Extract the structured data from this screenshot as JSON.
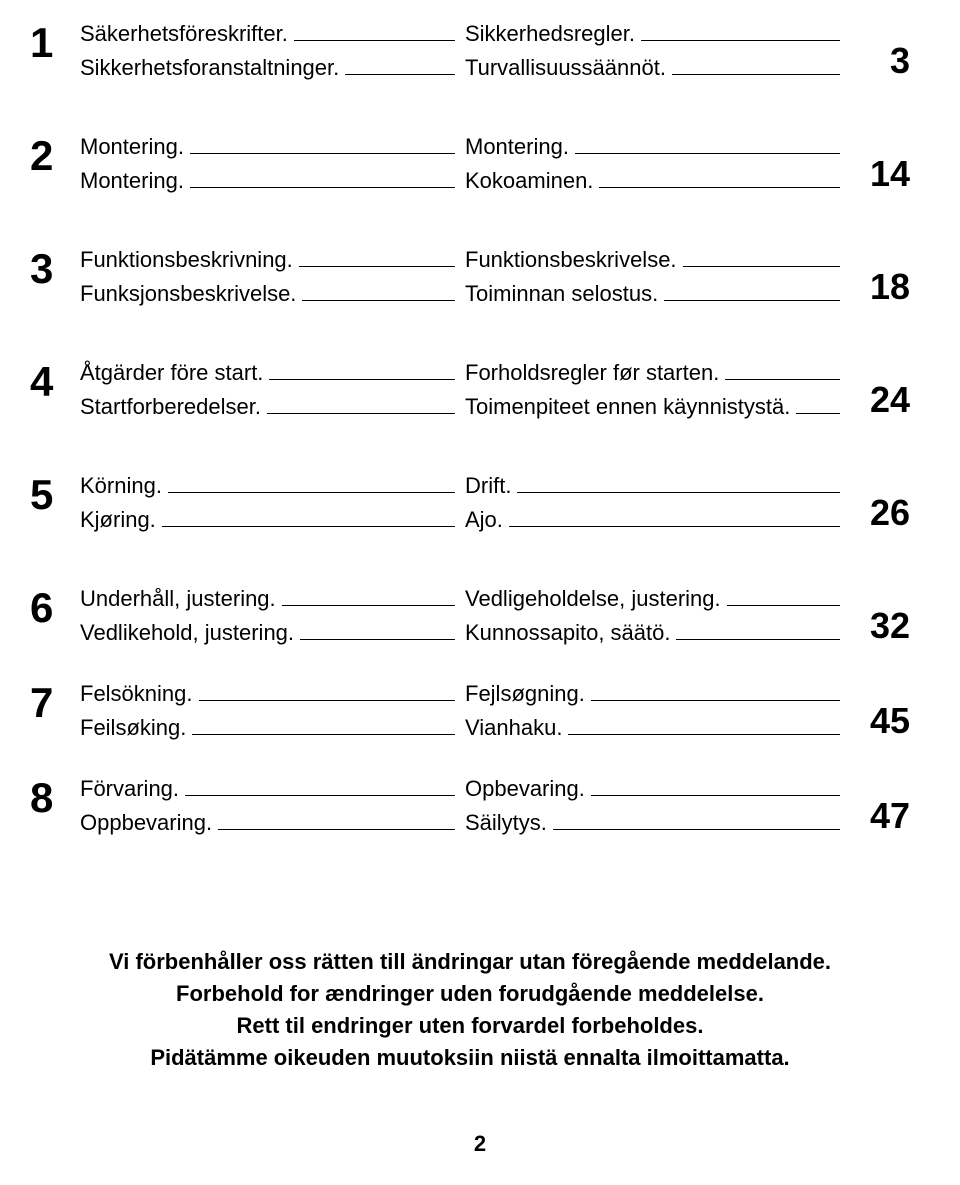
{
  "toc": [
    {
      "num": "1",
      "left": [
        "Säkerhetsföreskrifter.",
        "Sikkerhetsforanstaltninger."
      ],
      "right": [
        "Sikkerhedsregler.",
        "Turvallisuussäännöt."
      ],
      "page": "3",
      "tight": false
    },
    {
      "num": "2",
      "left": [
        "Montering.",
        "Montering."
      ],
      "right": [
        "Montering.",
        "Kokoaminen."
      ],
      "page": "14",
      "tight": false
    },
    {
      "num": "3",
      "left": [
        "Funktionsbeskrivning.",
        "Funksjonsbeskrivelse."
      ],
      "right": [
        "Funktionsbeskrivelse.",
        "Toiminnan selostus."
      ],
      "page": "18",
      "tight": false
    },
    {
      "num": "4",
      "left": [
        "Åtgärder före start.",
        "Startforberedelser."
      ],
      "right": [
        "Forholdsregler før starten.",
        "Toimenpiteet ennen käynnistystä."
      ],
      "page": "24",
      "tight": false
    },
    {
      "num": "5",
      "left": [
        "Körning.",
        "Kjøring."
      ],
      "right": [
        "Drift.",
        "Ajo."
      ],
      "page": "26",
      "tight": false
    },
    {
      "num": "6",
      "left": [
        "Underhåll, justering.",
        "Vedlikehold, justering."
      ],
      "right": [
        "Vedligeholdelse, justering.",
        "Kunnossapito, säätö."
      ],
      "page": "32",
      "tight": true
    },
    {
      "num": "7",
      "left": [
        "Felsökning.",
        "Feilsøking."
      ],
      "right": [
        "Fejlsøgning.",
        "Vianhaku."
      ],
      "page": "45",
      "tight": true
    },
    {
      "num": "8",
      "left": [
        "Förvaring.",
        "Oppbevaring."
      ],
      "right": [
        "Opbevaring.",
        "Säilytys."
      ],
      "page": "47",
      "tight": false
    }
  ],
  "notice": [
    "Vi  förbenhåller oss rätten till ändringar utan föregående meddelande.",
    "Forbehold for ændringer uden forudgående meddelelse.",
    "Rett til endringer uten forvardel forbeholdes.",
    "Pidätämme oikeuden muutoksiin niistä ennalta ilmoittamatta."
  ],
  "page_number": "2"
}
